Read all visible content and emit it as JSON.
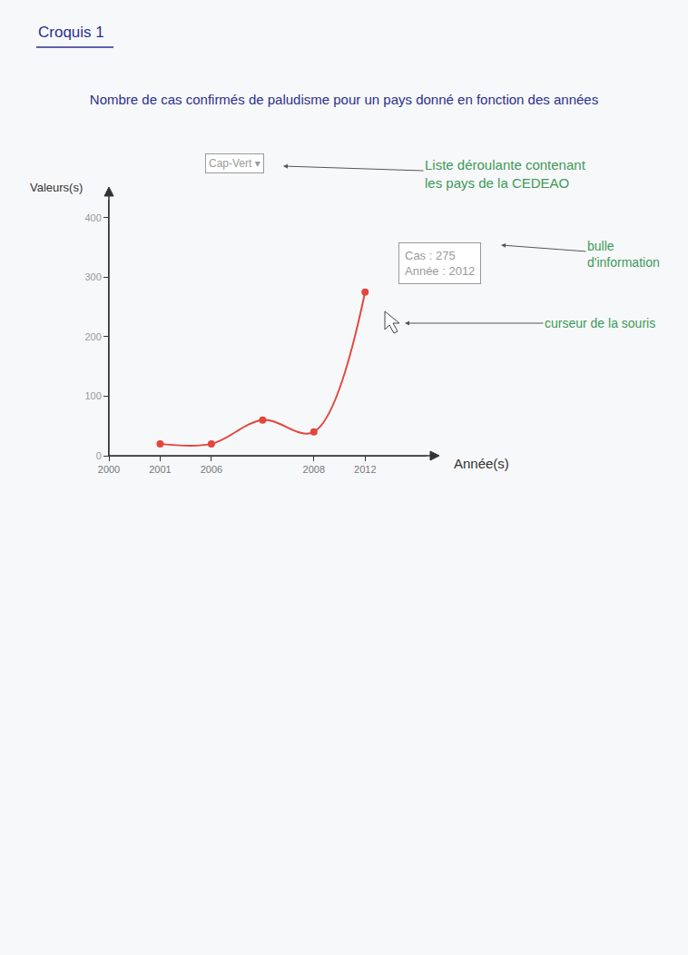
{
  "chart_data": {
    "type": "line",
    "heading": "Croquis 1",
    "title": "Nombre de cas confirmés de paludisme pour un pays donné en fonction des années",
    "y_label": "Valeurs(s)",
    "x_label": "Année(s)",
    "categories": [
      "2000",
      "2001",
      "2006",
      null,
      "2008",
      "2012"
    ],
    "values": [
      null,
      20,
      20,
      60,
      40,
      275
    ],
    "color": "#e3463c",
    "marker": "circle",
    "line_style": "spline",
    "ylim": [
      0,
      430
    ],
    "yticks": [
      0,
      100,
      200,
      300,
      400
    ],
    "grid": false,
    "dropdown": "Cap-Vert ▾",
    "dropdown_note": [
      "Liste déroulante contenant",
      "les pays de la CEDEAO"
    ],
    "tooltip": [
      "Cas : 275",
      "Année : 2012"
    ],
    "tooltip_note": [
      "bulle",
      "d'information"
    ],
    "cursor_note": "curseur de la souris"
  }
}
